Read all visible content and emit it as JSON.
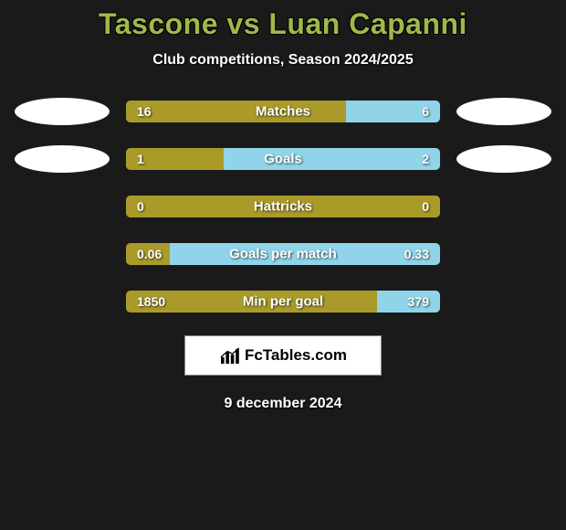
{
  "title": "Tascone vs Luan Capanni",
  "subtitle": "Club competitions, Season 2024/2025",
  "date": "9 december 2024",
  "logo_text": "FcTables.com",
  "colors": {
    "left": "#a99a2a",
    "right": "#8fd4e8",
    "title": "#a0b84a",
    "background": "#1a1a1a"
  },
  "rows": [
    {
      "label": "Matches",
      "left_val": "16",
      "right_val": "6",
      "left_pct": 70,
      "right_pct": 30,
      "show_left_oval": true,
      "show_right_oval": true
    },
    {
      "label": "Goals",
      "left_val": "1",
      "right_val": "2",
      "left_pct": 31,
      "right_pct": 69,
      "show_left_oval": true,
      "show_right_oval": true
    },
    {
      "label": "Hattricks",
      "left_val": "0",
      "right_val": "0",
      "left_pct": 100,
      "right_pct": 0,
      "show_left_oval": false,
      "show_right_oval": false
    },
    {
      "label": "Goals per match",
      "left_val": "0.06",
      "right_val": "0.33",
      "left_pct": 14,
      "right_pct": 86,
      "show_left_oval": false,
      "show_right_oval": false
    },
    {
      "label": "Min per goal",
      "left_val": "1850",
      "right_val": "379",
      "left_pct": 80,
      "right_pct": 20,
      "show_left_oval": false,
      "show_right_oval": false
    }
  ]
}
